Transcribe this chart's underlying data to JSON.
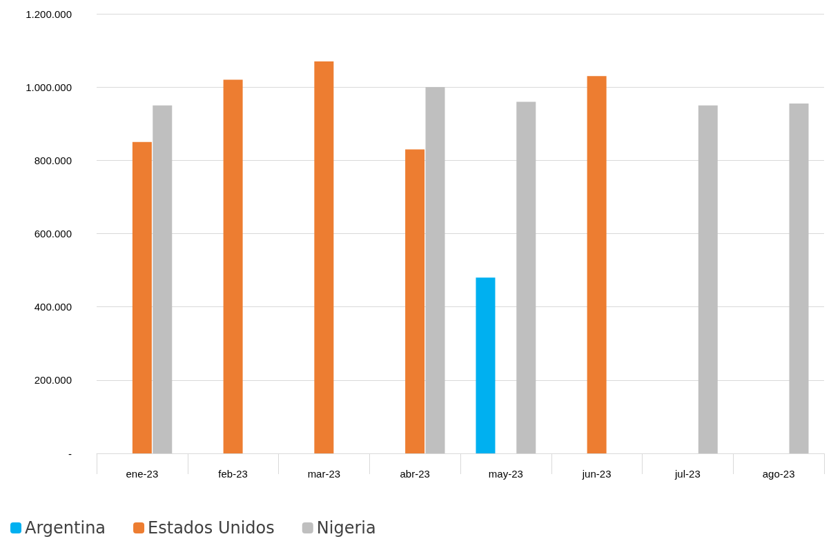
{
  "chart_data": {
    "type": "bar",
    "categories": [
      "ene-23",
      "feb-23",
      "mar-23",
      "abr-23",
      "may-23",
      "jun-23",
      "jul-23",
      "ago-23"
    ],
    "series": [
      {
        "name": "Argentina",
        "color": "#00b0f0",
        "values": [
          null,
          null,
          null,
          null,
          480000,
          null,
          null,
          null
        ]
      },
      {
        "name": "Estados Unidos",
        "color": "#ed7d31",
        "values": [
          850000,
          1020000,
          1070000,
          830000,
          null,
          1030000,
          null,
          null
        ]
      },
      {
        "name": "Nigeria",
        "color": "#bfbfbf",
        "values": [
          950000,
          null,
          null,
          1000000,
          960000,
          null,
          950000,
          955000
        ]
      }
    ],
    "ylim": [
      0,
      1200000
    ],
    "yticks": [
      {
        "value": 0,
        "label": "-"
      },
      {
        "value": 200000,
        "label": "200.000"
      },
      {
        "value": 400000,
        "label": "400.000"
      },
      {
        "value": 600000,
        "label": "600.000"
      },
      {
        "value": 800000,
        "label": "800.000"
      },
      {
        "value": 1000000,
        "label": "1.000.000"
      },
      {
        "value": 1200000,
        "label": "1.200.000"
      }
    ],
    "grid": "y",
    "legend": "bottom left"
  }
}
